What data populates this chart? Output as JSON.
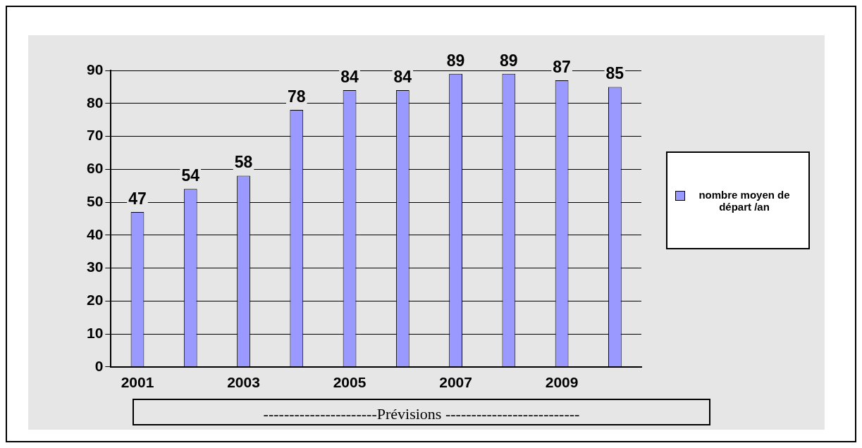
{
  "chart_data": {
    "type": "bar",
    "categories": [
      "2001",
      null,
      "2003",
      null,
      "2005",
      null,
      "2007",
      null,
      "2009",
      null
    ],
    "series": [
      {
        "name": "nombre moyen de départ /an",
        "color": "#9999ff",
        "values": [
          47,
          54,
          58,
          78,
          84,
          84,
          89,
          89,
          87,
          85
        ]
      }
    ],
    "ylim": [
      0,
      90
    ],
    "yticks": [
      0,
      10,
      20,
      30,
      40,
      50,
      60,
      70,
      80,
      90
    ],
    "grid": "y",
    "legend": "right",
    "data_labels": true,
    "annotations": [
      "----------------------Prévisions --------------------------"
    ]
  }
}
